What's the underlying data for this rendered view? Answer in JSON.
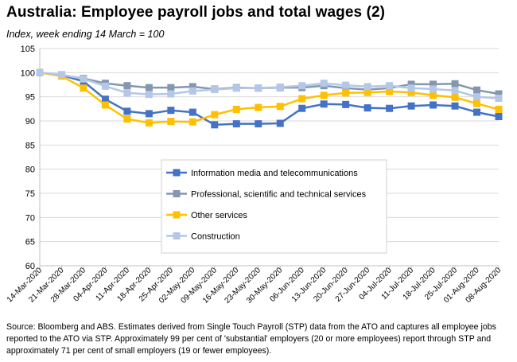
{
  "title": "Australia:  Employee payroll jobs and total wages (2)",
  "subtitle": "Index, week ending 14 March = 100",
  "source": "Source: Bloomberg and ABS.  Estimates derived from Single Touch Payroll (STP) data from the ATO and captures all employee jobs reported to the ATO via STP.  Approximately 99 per cent of 'substantial' employers (20 or more employees) report through STP and approximately 71 per cent of small employers (19 or fewer employees).",
  "chart_data": {
    "type": "line",
    "title": "Australia:  Employee payroll jobs and total wages (2)",
    "subtitle": "Index, week ending 14 March = 100",
    "xlabel": "",
    "ylabel": "",
    "ylim": [
      60,
      105
    ],
    "yticks": [
      60,
      65,
      70,
      75,
      80,
      85,
      90,
      95,
      100,
      105
    ],
    "grid": "horizontal",
    "legend_position": "center",
    "categories": [
      "14-Mar-2020",
      "21-Mar-2020",
      "28-Mar-2020",
      "04-Apr-2020",
      "11-Apr-2020",
      "18-Apr-2020",
      "25-Apr-2020",
      "02-May-2020",
      "09-May-2020",
      "16-May-2020",
      "23-May-2020",
      "30-May-2020",
      "06-Jun-2020",
      "13-Jun-2020",
      "20-Jun-2020",
      "27-Jun-2020",
      "04-Jul-2020",
      "11-Jul-2020",
      "18-Jul-2020",
      "25-Jul-2020",
      "01-Aug-2020",
      "08-Aug-2020"
    ],
    "series": [
      {
        "name": "Information media and telecommunications",
        "color": "#4472C4",
        "values": [
          100,
          99.5,
          98.2,
          94.5,
          92.0,
          91.5,
          92.2,
          91.8,
          89.2,
          89.4,
          89.4,
          89.5,
          92.6,
          93.5,
          93.4,
          92.7,
          92.6,
          93.1,
          93.3,
          93.1,
          91.8,
          90.9
        ]
      },
      {
        "name": "Professional, scientific and technical services",
        "color": "#8497B0",
        "values": [
          100,
          99.5,
          98.8,
          97.8,
          97.3,
          96.9,
          96.9,
          97.1,
          96.6,
          96.9,
          96.8,
          96.9,
          96.9,
          97.3,
          96.8,
          96.5,
          96.8,
          97.6,
          97.6,
          97.7,
          96.4,
          95.6
        ]
      },
      {
        "name": "Other services",
        "color": "#FFC000",
        "values": [
          100,
          99.3,
          96.8,
          93.3,
          90.4,
          89.6,
          89.9,
          89.8,
          91.3,
          92.4,
          92.8,
          93.0,
          94.6,
          95.3,
          95.8,
          95.9,
          96.1,
          95.9,
          95.3,
          94.9,
          93.6,
          92.4
        ]
      },
      {
        "name": "Construction",
        "color": "#B4C7E7",
        "values": [
          100,
          99.6,
          98.7,
          97.2,
          95.8,
          95.5,
          95.6,
          96.2,
          96.5,
          96.8,
          96.8,
          97.0,
          97.3,
          97.8,
          97.4,
          97.1,
          97.3,
          96.8,
          96.6,
          96.3,
          95.0,
          94.7
        ]
      }
    ]
  }
}
